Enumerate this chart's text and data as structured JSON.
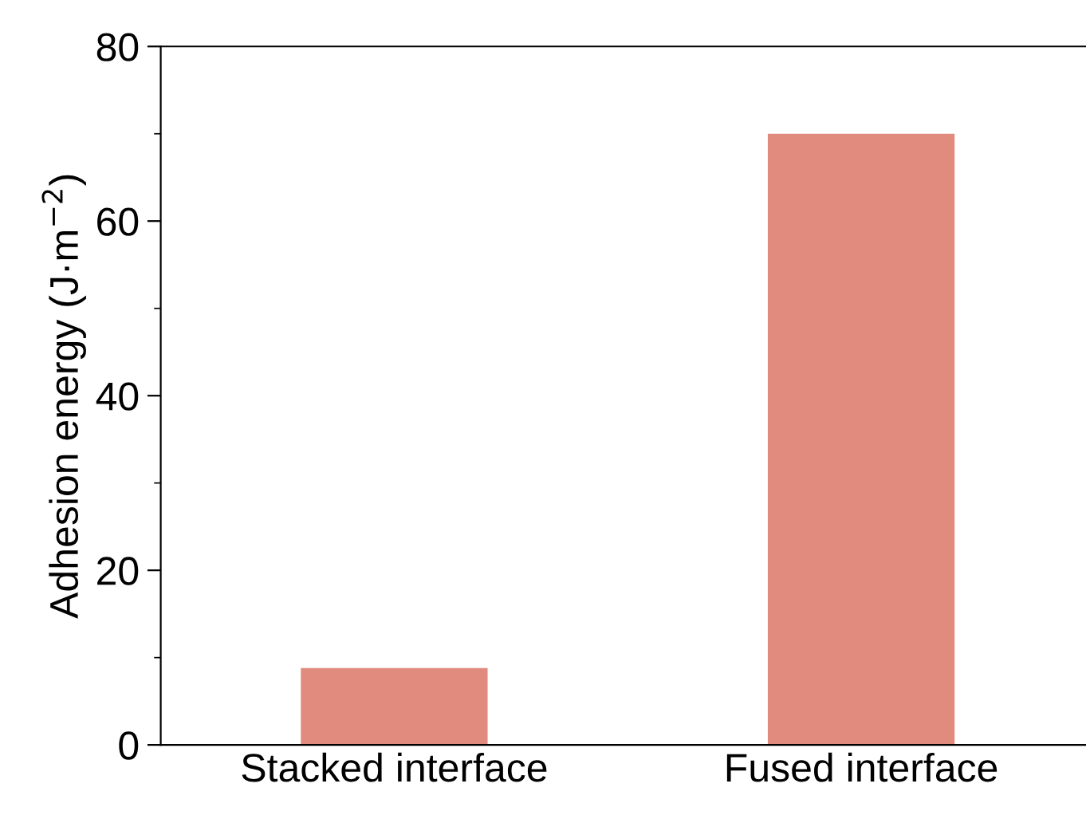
{
  "chart_data": {
    "type": "bar",
    "ylabel": "Adhesion energy (J·m$^{−2}$)",
    "categories": [
      "Stacked interface",
      "Fused interface"
    ],
    "values": [
      8.8,
      70
    ],
    "color": "#e08b7d",
    "ylim": [
      0,
      80
    ],
    "yticks": [
      0,
      20,
      40,
      60,
      80
    ],
    "grid": false
  }
}
